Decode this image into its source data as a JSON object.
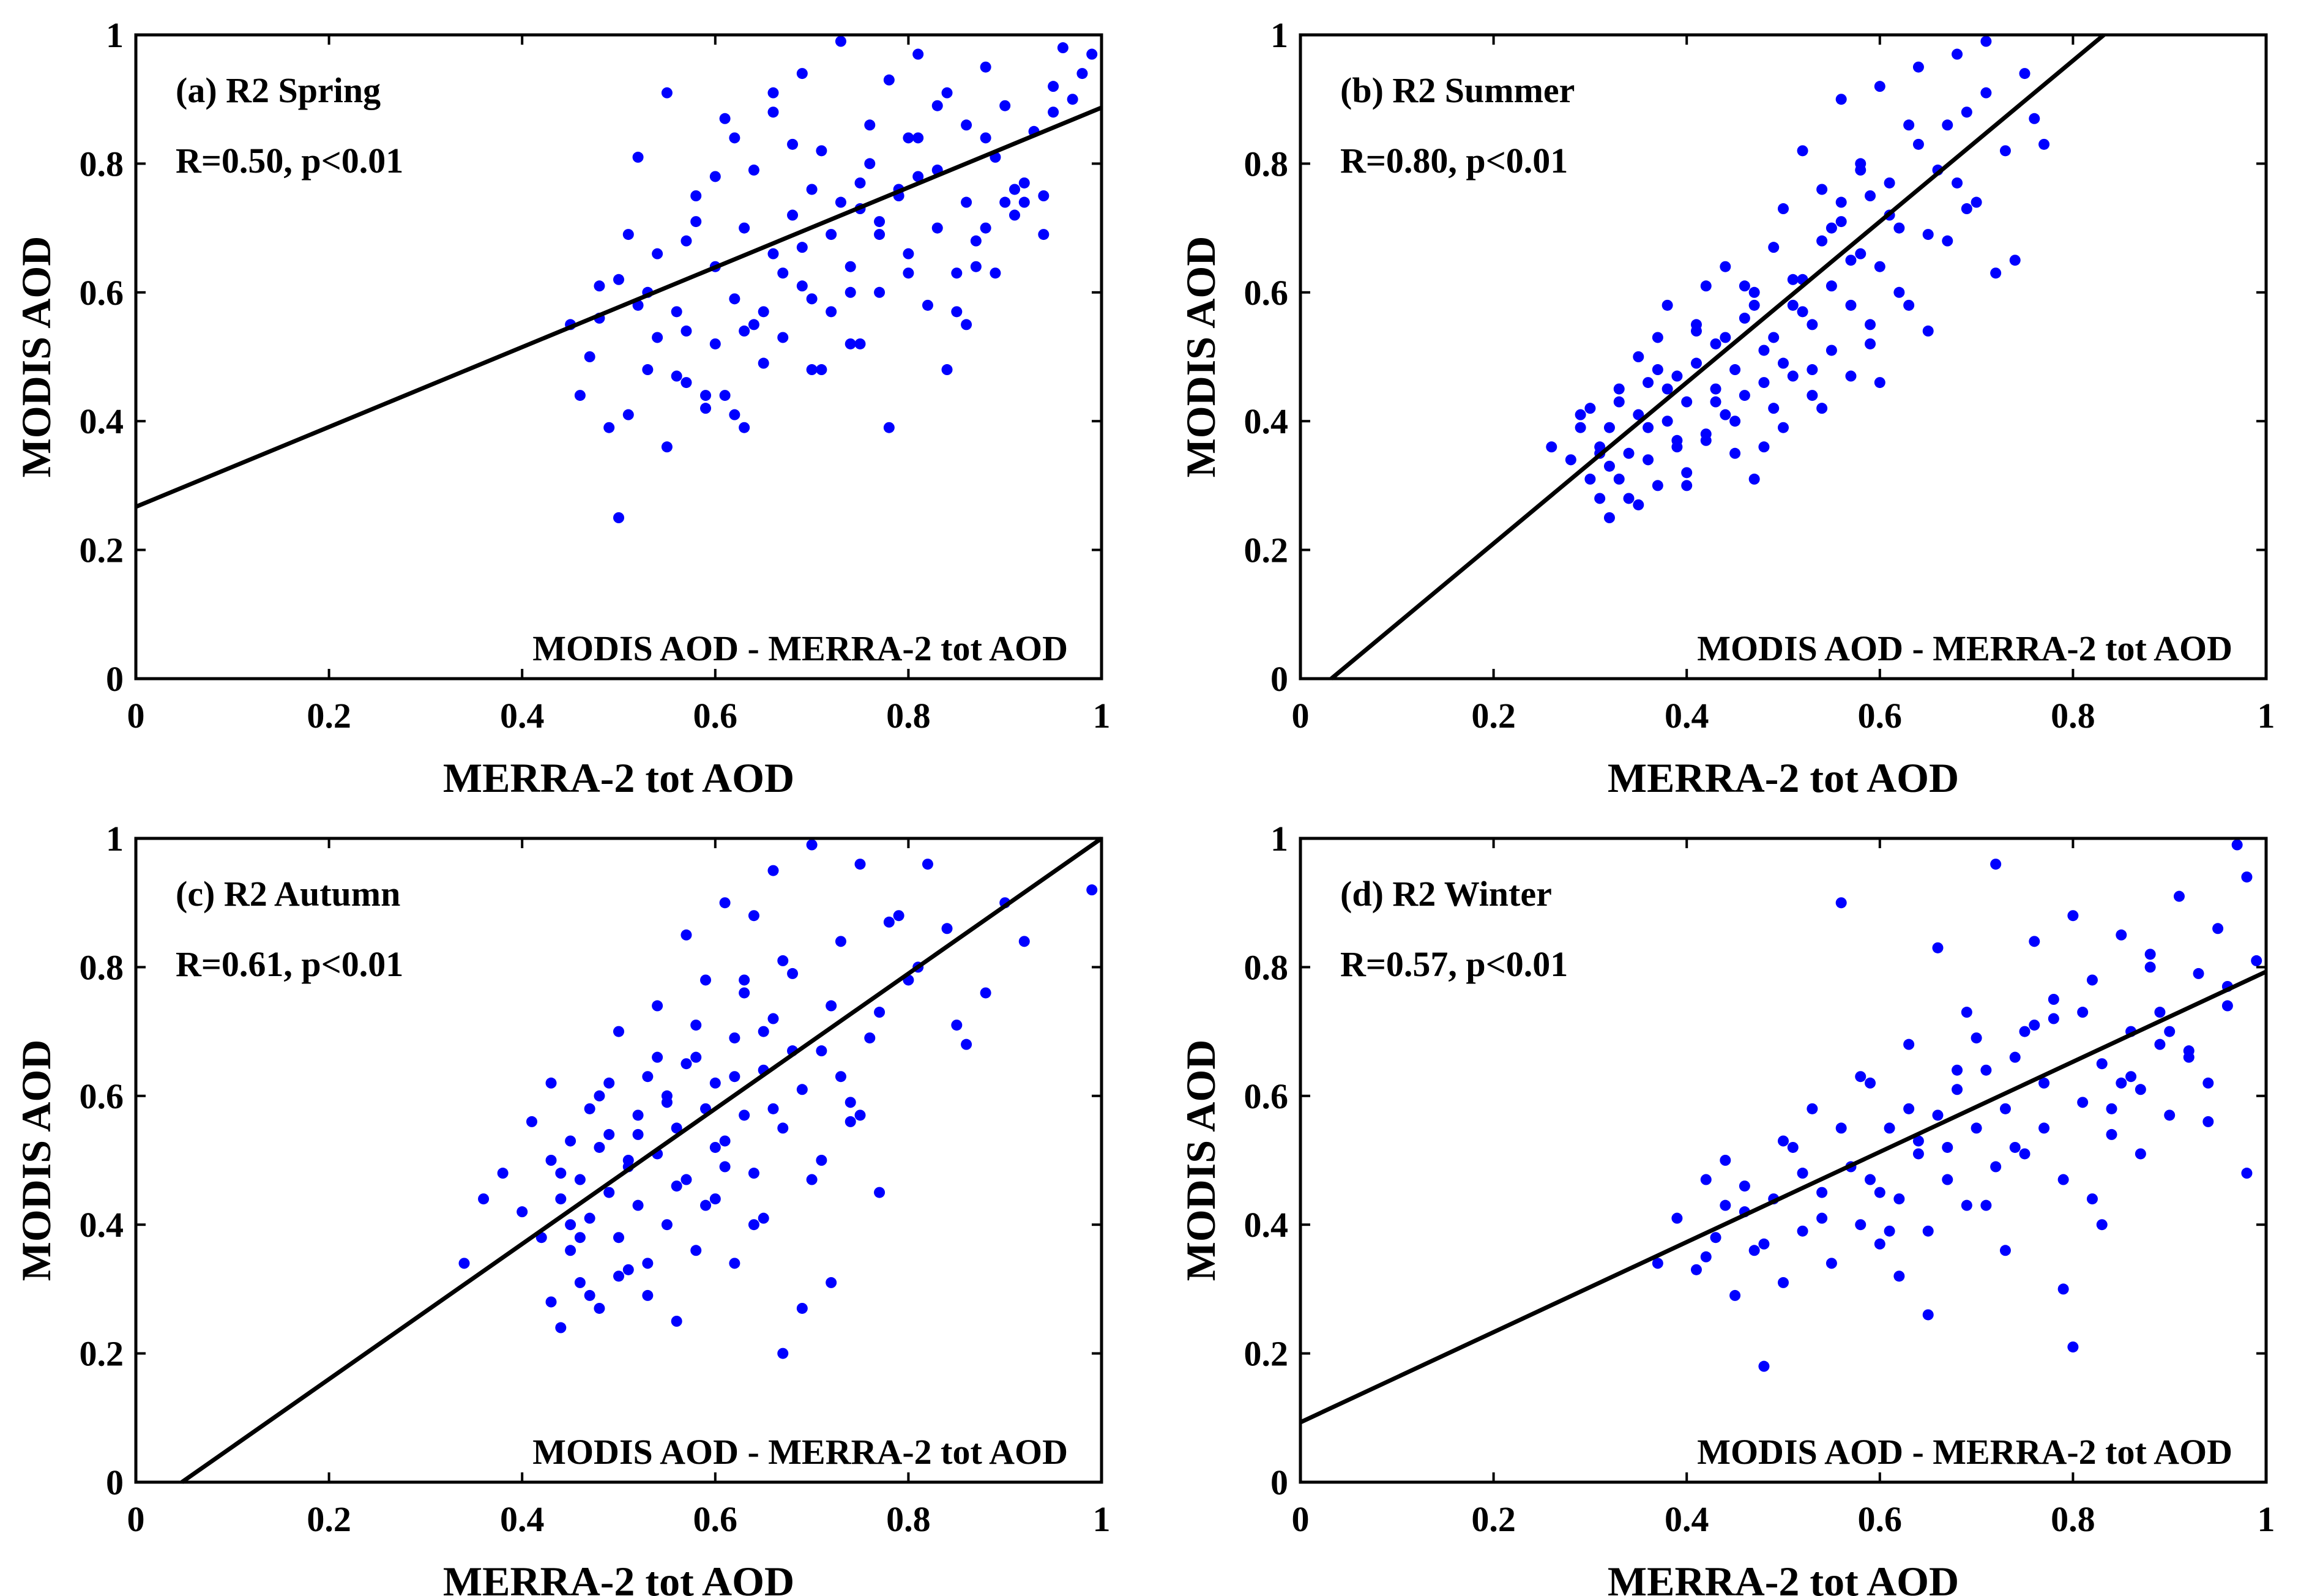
{
  "chart_data": [
    {
      "type": "scatter",
      "title": "(a) R2 Spring",
      "annotation": "R=0.50, p<0.01",
      "legend_text": "MODIS AOD - MERRA-2 tot AOD",
      "xlabel": "MERRA-2 tot AOD",
      "ylabel": "MODIS AOD",
      "xlim": [
        0,
        1
      ],
      "ylim": [
        0,
        1
      ],
      "xticks": [
        "0",
        "0.2",
        "0.4",
        "0.6",
        "0.8",
        "1"
      ],
      "yticks": [
        "0",
        "0.2",
        "0.4",
        "0.6",
        "0.8",
        "1"
      ],
      "marker_color": "#0000FF",
      "fit_line": {
        "slope": 0.62,
        "intercept": 0.267
      },
      "points": {
        "x": [
          0.45,
          0.46,
          0.47,
          0.48,
          0.49,
          0.5,
          0.51,
          0.52,
          0.53,
          0.53,
          0.54,
          0.55,
          0.56,
          0.57,
          0.57,
          0.58,
          0.59,
          0.6,
          0.6,
          0.61,
          0.62,
          0.62,
          0.63,
          0.64,
          0.64,
          0.65,
          0.66,
          0.66,
          0.67,
          0.68,
          0.69,
          0.69,
          0.7,
          0.71,
          0.72,
          0.72,
          0.73,
          0.74,
          0.75,
          0.75,
          0.76,
          0.77,
          0.77,
          0.78,
          0.79,
          0.8,
          0.8,
          0.81,
          0.82,
          0.83,
          0.83,
          0.84,
          0.85,
          0.86,
          0.86,
          0.87,
          0.88,
          0.89,
          0.89,
          0.9,
          0.91,
          0.92,
          0.93,
          0.94,
          0.95,
          0.96,
          0.97,
          0.98,
          0.48,
          0.51,
          0.55,
          0.58,
          0.61,
          0.65,
          0.68,
          0.71,
          0.74,
          0.78,
          0.81,
          0.85,
          0.88,
          0.92,
          0.95,
          0.99,
          0.52,
          0.56,
          0.6,
          0.63,
          0.67,
          0.7,
          0.74,
          0.77,
          0.81,
          0.84,
          0.88,
          0.91,
          0.5,
          0.54,
          0.59,
          0.63,
          0.66,
          0.7,
          0.73,
          0.76,
          0.8,
          0.83,
          0.87,
          0.9,
          0.94,
          0.57,
          0.62,
          0.69,
          0.75,
          0.79,
          0.86
        ],
        "y": [
          0.55,
          0.44,
          0.5,
          0.61,
          0.39,
          0.62,
          0.41,
          0.81,
          0.48,
          0.6,
          0.53,
          0.91,
          0.57,
          0.68,
          0.46,
          0.75,
          0.44,
          0.64,
          0.52,
          0.87,
          0.59,
          0.41,
          0.7,
          0.55,
          0.79,
          0.49,
          0.88,
          0.66,
          0.53,
          0.72,
          0.94,
          0.61,
          0.48,
          0.82,
          0.57,
          0.69,
          0.99,
          0.64,
          0.77,
          0.52,
          0.86,
          0.71,
          0.6,
          0.93,
          0.75,
          0.66,
          0.84,
          0.97,
          0.58,
          0.79,
          0.7,
          0.91,
          0.63,
          0.86,
          0.74,
          0.68,
          0.95,
          0.81,
          0.63,
          0.89,
          0.72,
          0.77,
          0.85,
          0.69,
          0.92,
          0.98,
          0.9,
          0.94,
          0.56,
          0.69,
          0.36,
          0.71,
          0.44,
          0.57,
          0.83,
          0.48,
          0.6,
          0.39,
          0.84,
          0.57,
          0.7,
          0.74,
          0.88,
          0.97,
          0.58,
          0.47,
          0.78,
          0.39,
          0.63,
          0.76,
          0.52,
          0.69,
          0.78,
          0.48,
          0.84,
          0.76,
          0.25,
          0.66,
          0.42,
          0.54,
          0.91,
          0.59,
          0.74,
          0.8,
          0.63,
          0.89,
          0.64,
          0.74,
          0.75,
          0.54,
          0.84,
          0.67,
          0.73,
          0.76,
          0.55
        ]
      }
    },
    {
      "type": "scatter",
      "title": "(b) R2 Summer",
      "annotation": "R=0.80, p<0.01",
      "legend_text": "MODIS AOD - MERRA-2 tot AOD",
      "xlabel": "MERRA-2 tot AOD",
      "ylabel": "MODIS AOD",
      "xlim": [
        0,
        1
      ],
      "ylim": [
        0,
        1
      ],
      "xticks": [
        "0",
        "0.2",
        "0.4",
        "0.6",
        "0.8",
        "1"
      ],
      "yticks": [
        "0",
        "0.2",
        "0.4",
        "0.6",
        "0.8",
        "1"
      ],
      "marker_color": "#0000FF",
      "fit_line": {
        "slope": 1.25,
        "intercept": -0.04
      },
      "points": {
        "x": [
          0.26,
          0.28,
          0.29,
          0.3,
          0.3,
          0.31,
          0.31,
          0.32,
          0.32,
          0.33,
          0.33,
          0.34,
          0.34,
          0.35,
          0.35,
          0.36,
          0.36,
          0.37,
          0.37,
          0.38,
          0.38,
          0.39,
          0.39,
          0.4,
          0.4,
          0.41,
          0.41,
          0.42,
          0.42,
          0.43,
          0.43,
          0.44,
          0.44,
          0.45,
          0.45,
          0.46,
          0.46,
          0.47,
          0.47,
          0.48,
          0.48,
          0.49,
          0.49,
          0.5,
          0.5,
          0.51,
          0.51,
          0.52,
          0.52,
          0.53,
          0.53,
          0.54,
          0.54,
          0.55,
          0.55,
          0.56,
          0.56,
          0.57,
          0.57,
          0.58,
          0.58,
          0.59,
          0.59,
          0.6,
          0.6,
          0.61,
          0.62,
          0.63,
          0.64,
          0.65,
          0.66,
          0.67,
          0.68,
          0.69,
          0.7,
          0.71,
          0.72,
          0.73,
          0.74,
          0.75,
          0.76,
          0.77,
          0.29,
          0.31,
          0.33,
          0.35,
          0.37,
          0.39,
          0.41,
          0.43,
          0.45,
          0.47,
          0.49,
          0.51,
          0.53,
          0.55,
          0.57,
          0.59,
          0.61,
          0.63,
          0.65,
          0.67,
          0.69,
          0.71,
          0.32,
          0.36,
          0.4,
          0.44,
          0.48,
          0.52,
          0.56,
          0.6,
          0.64,
          0.68,
          0.38,
          0.42,
          0.46,
          0.5,
          0.54,
          0.58,
          0.62
        ],
        "y": [
          0.36,
          0.34,
          0.39,
          0.31,
          0.42,
          0.36,
          0.28,
          0.25,
          0.39,
          0.31,
          0.45,
          0.35,
          0.28,
          0.41,
          0.5,
          0.34,
          0.46,
          0.3,
          0.53,
          0.4,
          0.58,
          0.36,
          0.47,
          0.43,
          0.32,
          0.49,
          0.55,
          0.38,
          0.61,
          0.45,
          0.52,
          0.41,
          0.64,
          0.48,
          0.35,
          0.56,
          0.44,
          0.31,
          0.6,
          0.51,
          0.46,
          0.67,
          0.53,
          0.39,
          0.73,
          0.58,
          0.47,
          0.82,
          0.62,
          0.44,
          0.55,
          0.68,
          0.76,
          0.51,
          0.61,
          0.9,
          0.71,
          0.58,
          0.47,
          0.66,
          0.8,
          0.55,
          0.75,
          0.64,
          0.92,
          0.72,
          0.6,
          0.86,
          0.95,
          0.54,
          0.79,
          0.68,
          0.97,
          0.88,
          0.74,
          0.99,
          0.63,
          0.82,
          0.65,
          0.94,
          0.87,
          0.83,
          0.41,
          0.35,
          0.43,
          0.27,
          0.48,
          0.37,
          0.54,
          0.43,
          0.4,
          0.58,
          0.42,
          0.62,
          0.48,
          0.7,
          0.65,
          0.52,
          0.77,
          0.58,
          0.69,
          0.86,
          0.73,
          0.91,
          0.33,
          0.39,
          0.3,
          0.53,
          0.36,
          0.57,
          0.74,
          0.46,
          0.83,
          0.77,
          0.45,
          0.37,
          0.61,
          0.49,
          0.42,
          0.79,
          0.7
        ]
      }
    },
    {
      "type": "scatter",
      "title": "(c) R2 Autumn",
      "annotation": "R=0.61, p<0.01",
      "legend_text": "MODIS AOD - MERRA-2 tot AOD",
      "xlabel": "MERRA-2 tot AOD",
      "ylabel": "MODIS AOD",
      "xlim": [
        0,
        1
      ],
      "ylim": [
        0,
        1
      ],
      "xticks": [
        "0",
        "0.2",
        "0.4",
        "0.6",
        "0.8",
        "1"
      ],
      "yticks": [
        "0",
        "0.2",
        "0.4",
        "0.6",
        "0.8",
        "1"
      ],
      "marker_color": "#0000FF",
      "fit_line": {
        "slope": 1.05,
        "intercept": -0.05
      },
      "points": {
        "x": [
          0.34,
          0.36,
          0.38,
          0.4,
          0.41,
          0.42,
          0.43,
          0.43,
          0.44,
          0.44,
          0.45,
          0.45,
          0.46,
          0.46,
          0.47,
          0.47,
          0.48,
          0.48,
          0.49,
          0.49,
          0.5,
          0.5,
          0.51,
          0.51,
          0.52,
          0.52,
          0.53,
          0.53,
          0.54,
          0.54,
          0.55,
          0.55,
          0.56,
          0.56,
          0.57,
          0.57,
          0.58,
          0.58,
          0.59,
          0.59,
          0.6,
          0.6,
          0.61,
          0.61,
          0.62,
          0.62,
          0.63,
          0.63,
          0.64,
          0.64,
          0.65,
          0.65,
          0.66,
          0.66,
          0.67,
          0.67,
          0.68,
          0.69,
          0.7,
          0.71,
          0.72,
          0.73,
          0.74,
          0.75,
          0.76,
          0.77,
          0.78,
          0.8,
          0.82,
          0.84,
          0.86,
          0.88,
          0.9,
          0.92,
          0.99,
          0.44,
          0.46,
          0.48,
          0.5,
          0.52,
          0.54,
          0.56,
          0.58,
          0.6,
          0.62,
          0.64,
          0.66,
          0.68,
          0.7,
          0.72,
          0.74,
          0.43,
          0.47,
          0.51,
          0.55,
          0.59,
          0.63,
          0.67,
          0.71,
          0.75,
          0.79,
          0.45,
          0.49,
          0.53,
          0.57,
          0.61,
          0.65,
          0.69,
          0.73,
          0.77,
          0.81,
          0.85
        ],
        "y": [
          0.34,
          0.44,
          0.48,
          0.42,
          0.56,
          0.38,
          0.5,
          0.28,
          0.44,
          0.24,
          0.53,
          0.36,
          0.47,
          0.31,
          0.58,
          0.41,
          0.52,
          0.27,
          0.45,
          0.62,
          0.38,
          0.7,
          0.49,
          0.33,
          0.57,
          0.43,
          0.63,
          0.29,
          0.51,
          0.74,
          0.4,
          0.6,
          0.25,
          0.55,
          0.85,
          0.47,
          0.66,
          0.36,
          0.58,
          0.78,
          0.44,
          0.62,
          0.9,
          0.53,
          0.69,
          0.34,
          0.76,
          0.57,
          0.48,
          0.88,
          0.64,
          0.41,
          0.72,
          0.95,
          0.55,
          0.81,
          0.67,
          0.61,
          0.99,
          0.5,
          0.74,
          0.84,
          0.59,
          0.96,
          0.69,
          0.45,
          0.87,
          0.78,
          0.96,
          0.86,
          0.68,
          0.76,
          0.9,
          0.84,
          0.92,
          0.48,
          0.38,
          0.6,
          0.32,
          0.54,
          0.66,
          0.46,
          0.71,
          0.52,
          0.63,
          0.4,
          0.58,
          0.79,
          0.47,
          0.31,
          0.56,
          0.62,
          0.29,
          0.5,
          0.59,
          0.43,
          0.78,
          0.2,
          0.67,
          0.57,
          0.88,
          0.4,
          0.54,
          0.34,
          0.65,
          0.49,
          0.7,
          0.27,
          0.63,
          0.73,
          0.8,
          0.71
        ]
      }
    },
    {
      "type": "scatter",
      "title": "(d) R2 Winter",
      "annotation": "R=0.57, p<0.01",
      "legend_text": "MODIS AOD - MERRA-2 tot AOD",
      "xlabel": "MERRA-2 tot AOD",
      "ylabel": "MODIS AOD",
      "xlim": [
        0,
        1
      ],
      "ylim": [
        0,
        1
      ],
      "xticks": [
        "0",
        "0.2",
        "0.4",
        "0.6",
        "0.8",
        "1"
      ],
      "yticks": [
        "0",
        "0.2",
        "0.4",
        "0.6",
        "0.8",
        "1"
      ],
      "marker_color": "#0000FF",
      "fit_line": {
        "slope": 0.7,
        "intercept": 0.093
      },
      "points": {
        "x": [
          0.37,
          0.39,
          0.41,
          0.42,
          0.43,
          0.44,
          0.45,
          0.46,
          0.47,
          0.48,
          0.49,
          0.5,
          0.51,
          0.52,
          0.53,
          0.54,
          0.55,
          0.56,
          0.57,
          0.58,
          0.59,
          0.6,
          0.61,
          0.62,
          0.63,
          0.64,
          0.65,
          0.66,
          0.67,
          0.68,
          0.69,
          0.7,
          0.71,
          0.72,
          0.73,
          0.74,
          0.75,
          0.76,
          0.77,
          0.78,
          0.79,
          0.8,
          0.81,
          0.82,
          0.83,
          0.84,
          0.85,
          0.86,
          0.87,
          0.88,
          0.89,
          0.9,
          0.91,
          0.92,
          0.93,
          0.94,
          0.95,
          0.96,
          0.97,
          0.98,
          0.99,
          0.42,
          0.46,
          0.5,
          0.54,
          0.58,
          0.62,
          0.66,
          0.7,
          0.74,
          0.78,
          0.82,
          0.86,
          0.9,
          0.94,
          0.98,
          0.44,
          0.48,
          0.52,
          0.56,
          0.6,
          0.64,
          0.68,
          0.72,
          0.76,
          0.8,
          0.84,
          0.88,
          0.92,
          0.96,
          0.59,
          0.61,
          0.63,
          0.65,
          0.67,
          0.69,
          0.71,
          0.73,
          0.75,
          0.77,
          0.79,
          0.81,
          0.83,
          0.85,
          0.87,
          0.89
        ],
        "y": [
          0.34,
          0.41,
          0.33,
          0.47,
          0.38,
          0.5,
          0.29,
          0.42,
          0.36,
          0.18,
          0.44,
          0.31,
          0.52,
          0.39,
          0.58,
          0.45,
          0.34,
          0.9,
          0.49,
          0.4,
          0.62,
          0.37,
          0.55,
          0.44,
          0.68,
          0.51,
          0.39,
          0.83,
          0.47,
          0.61,
          0.73,
          0.55,
          0.43,
          0.96,
          0.58,
          0.66,
          0.51,
          0.84,
          0.62,
          0.72,
          0.47,
          0.88,
          0.59,
          0.78,
          0.65,
          0.54,
          0.85,
          0.7,
          0.61,
          0.8,
          0.73,
          0.57,
          0.91,
          0.67,
          0.79,
          0.62,
          0.86,
          0.74,
          0.99,
          0.48,
          0.81,
          0.35,
          0.46,
          0.53,
          0.41,
          0.63,
          0.32,
          0.57,
          0.69,
          0.52,
          0.75,
          0.44,
          0.63,
          0.7,
          0.56,
          0.94,
          0.43,
          0.37,
          0.48,
          0.55,
          0.45,
          0.53,
          0.64,
          0.49,
          0.71,
          0.21,
          0.58,
          0.82,
          0.66,
          0.77,
          0.47,
          0.39,
          0.58,
          0.26,
          0.52,
          0.43,
          0.64,
          0.36,
          0.7,
          0.55,
          0.3,
          0.73,
          0.4,
          0.62,
          0.51,
          0.68
        ]
      }
    }
  ]
}
